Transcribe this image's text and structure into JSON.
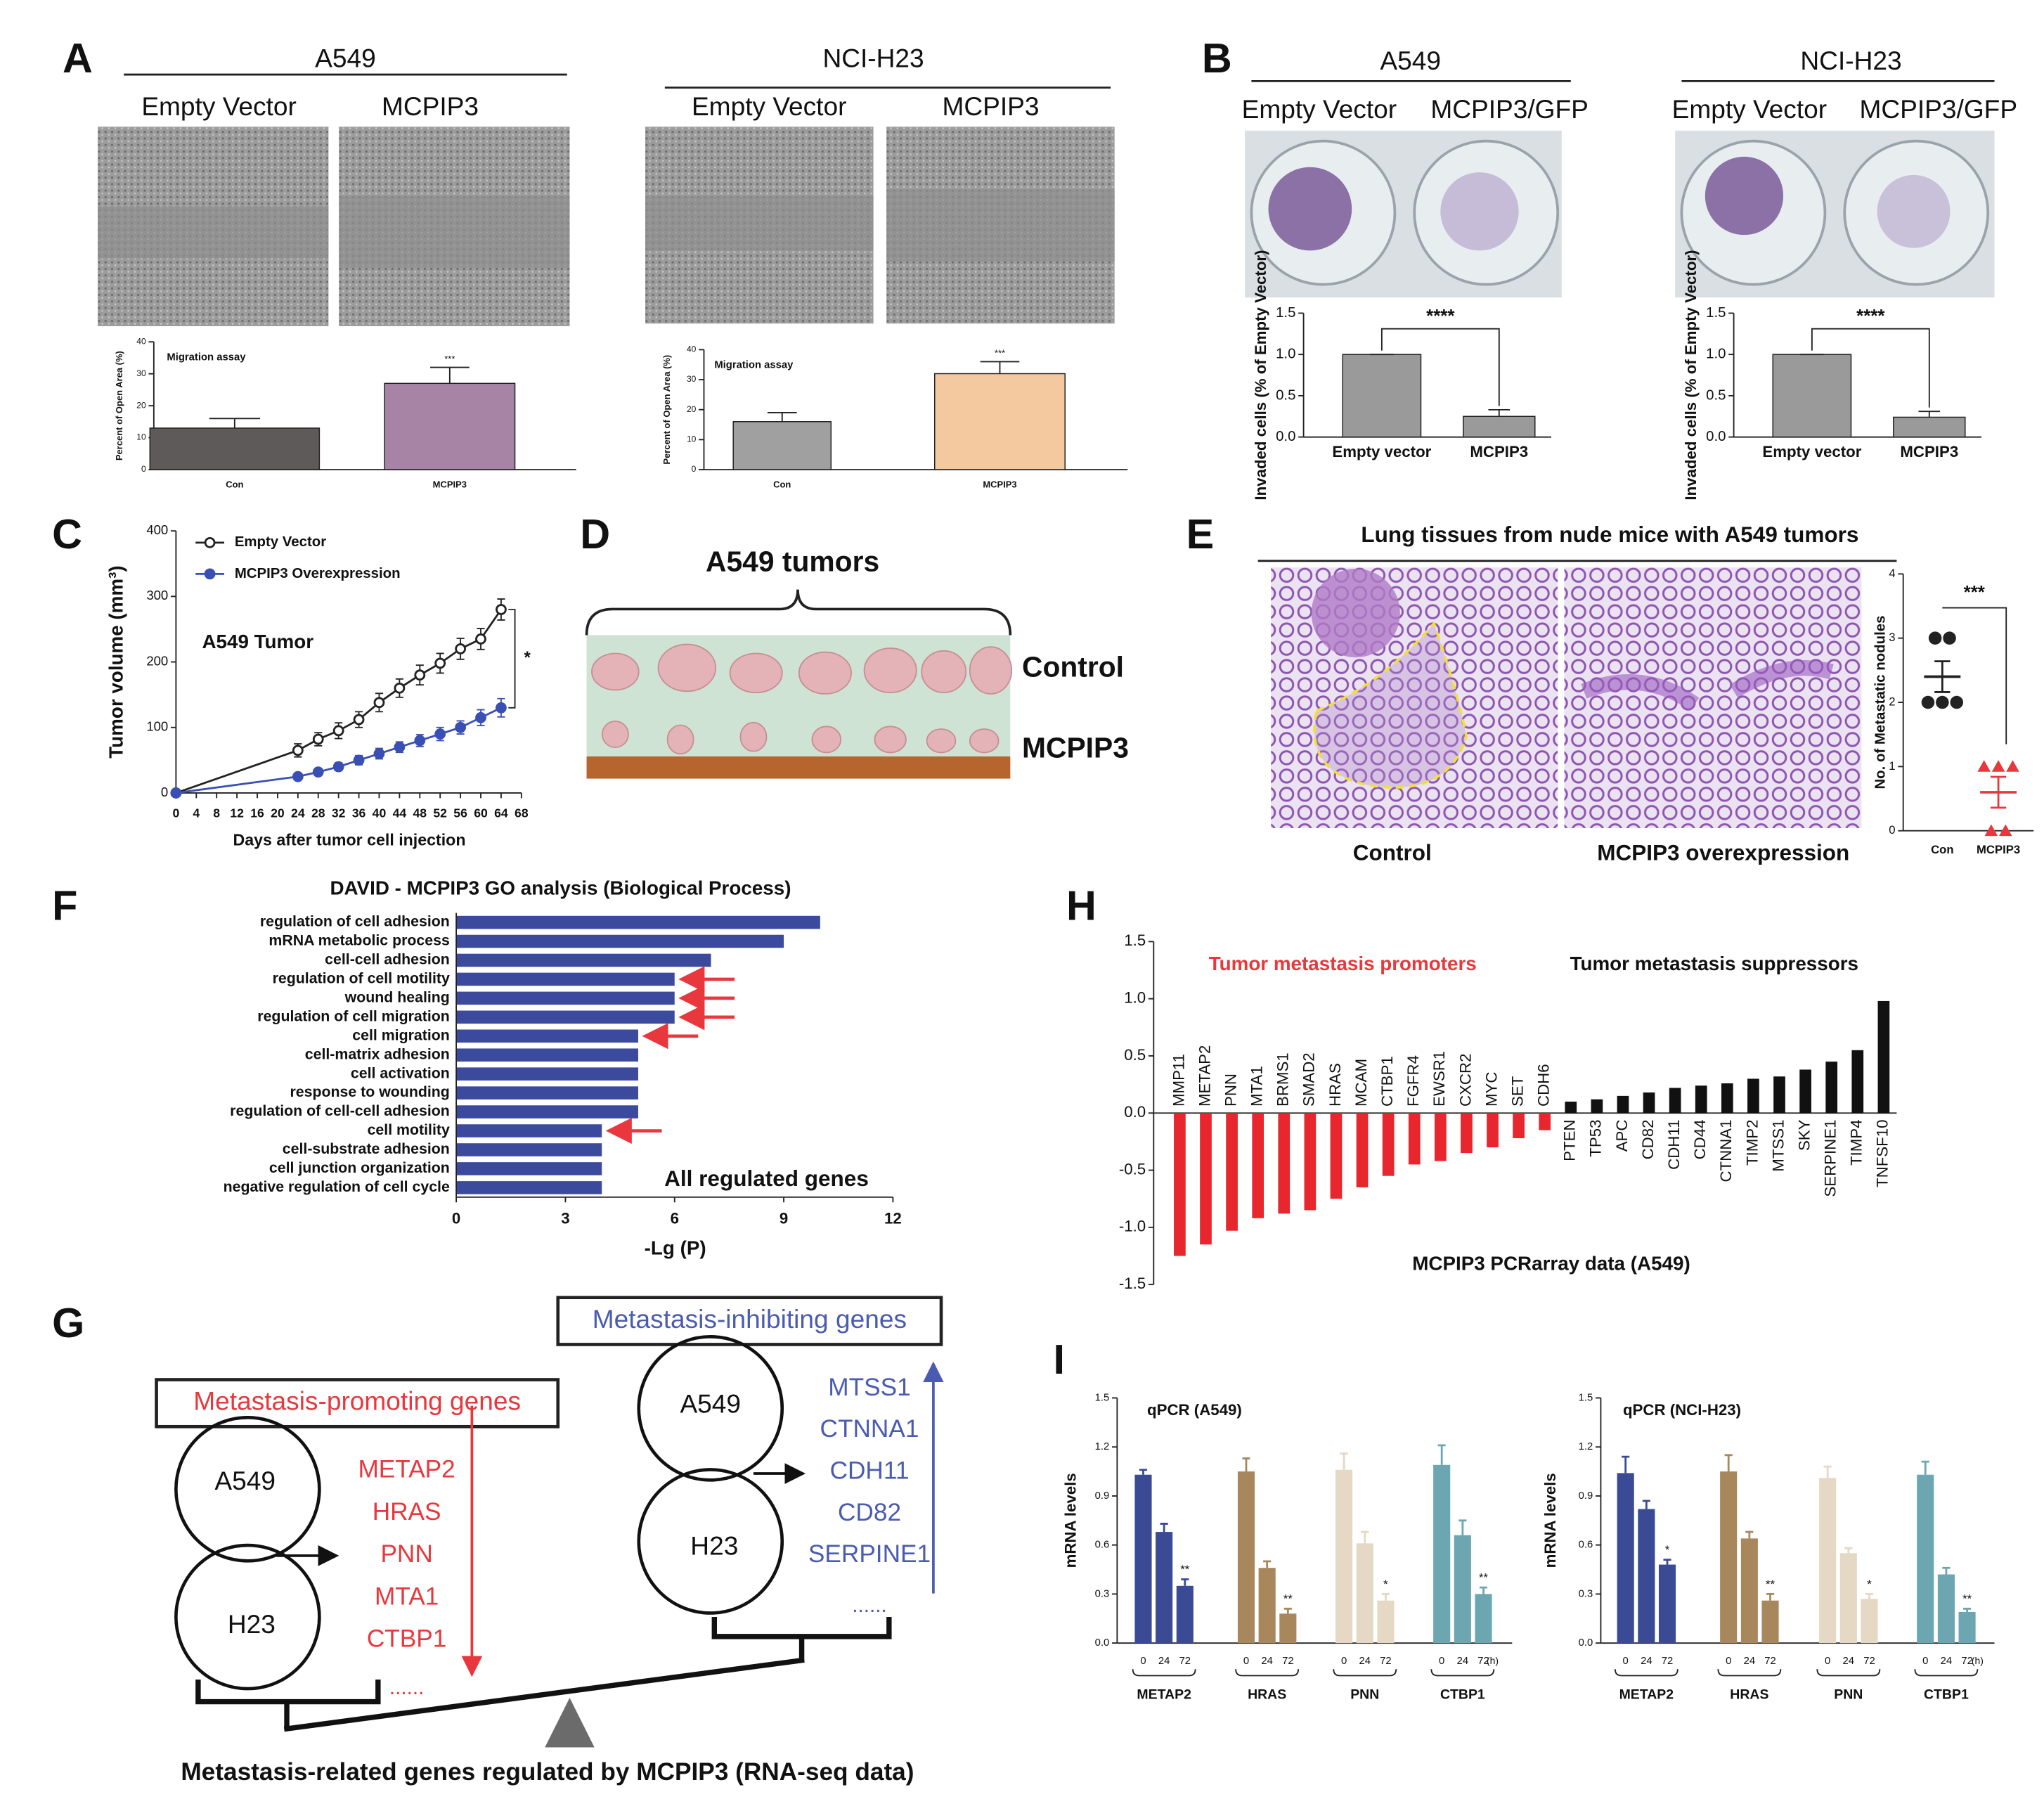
{
  "figure": {
    "panel_labels": [
      "A",
      "B",
      "C",
      "D",
      "E",
      "F",
      "G",
      "H",
      "I"
    ],
    "migration_photos": [
      {
        "title": "A549",
        "conditions": [
          "Empty Vector",
          "MCPIP3"
        ]
      },
      {
        "title": "NCI-H23",
        "conditions": [
          "Empty Vector",
          "MCPIP3"
        ]
      }
    ],
    "invasion_photos": [
      {
        "title": "A549",
        "conditions": [
          "Empty Vector",
          "MCPIP3/GFP"
        ]
      },
      {
        "title": "NCI-H23",
        "conditions": [
          "Empty Vector",
          "MCPIP3/GFP"
        ]
      }
    ],
    "tumors": {
      "title": "A549 tumors",
      "rows": [
        "Control",
        "MCPIP3"
      ]
    },
    "lung": {
      "title": "Lung tissues from nude mice with A549 tumors",
      "conditions": [
        "Control",
        "MCPIP3 overexpression"
      ]
    },
    "diagram": {
      "circles": [
        "A549",
        "H23"
      ],
      "promoting": {
        "title": "Metastasis-promoting genes",
        "genes": [
          "METAP2",
          "HRAS",
          "PNN",
          "MTA1",
          "CTBP1"
        ],
        "more": "......"
      },
      "inhibiting": {
        "title": "Metastasis-inhibiting genes",
        "genes": [
          "MTSS1",
          "CTNNA1",
          "CDH11",
          "CD82",
          "SERPINE1"
        ],
        "more": "......"
      },
      "caption": "Metastasis-related genes regulated by MCPIP3 (RNA-seq data)"
    }
  },
  "chart_data": [
    {
      "type": "bar",
      "title": "Migration assay",
      "ylabel": "Percent of Open Area (%)",
      "categories": [
        "Con",
        "MCPIP3"
      ],
      "values": [
        13,
        27
      ],
      "errors": [
        3,
        5
      ],
      "colors": [
        "#5f5a5a",
        "#a784a6"
      ],
      "ylim": [
        0,
        40
      ],
      "yticks": [
        0,
        10,
        20,
        30,
        40
      ],
      "significance": "***"
    },
    {
      "type": "bar",
      "title": "Migration assay",
      "ylabel": "Percent of Open Area (%)",
      "categories": [
        "Con",
        "MCPIP3"
      ],
      "values": [
        16,
        32
      ],
      "errors": [
        3,
        4
      ],
      "colors": [
        "#a0a0a0",
        "#f5c9a0"
      ],
      "ylim": [
        0,
        40
      ],
      "yticks": [
        0,
        10,
        20,
        30,
        40
      ],
      "significance": "***"
    },
    {
      "type": "bar",
      "ylabel": "Invaded cells (% of Empty Vector)",
      "categories": [
        "Empty vector",
        "MCPIP3"
      ],
      "values": [
        1,
        0.25
      ],
      "errors": [
        0,
        0.08
      ],
      "colors": [
        "#9a9a9a",
        "#9a9a9a"
      ],
      "ylim": [
        0,
        1.5
      ],
      "yticks": [
        {
          "value": 0,
          "label": "0.0"
        },
        0.5,
        {
          "value": 1,
          "label": "1.0"
        },
        1.5
      ],
      "significance": "****",
      "bracket": true
    },
    {
      "type": "bar",
      "ylabel": "Invaded cells (% of Empty Vector)",
      "categories": [
        "Empty vector",
        "MCPIP3"
      ],
      "values": [
        1,
        0.24
      ],
      "errors": [
        0,
        0.07
      ],
      "colors": [
        "#9a9a9a",
        "#9a9a9a"
      ],
      "ylim": [
        0,
        1.5
      ],
      "yticks": [
        {
          "value": 0,
          "label": "0.0"
        },
        0.5,
        {
          "value": 1,
          "label": "1.0"
        },
        1.5
      ],
      "significance": "****",
      "bracket": true
    },
    {
      "type": "line",
      "ylabel": "Tumor volume (mm³)",
      "xlabel": "Days after tumor cell injection",
      "annotation": "A549 Tumor",
      "significance": "*",
      "x": [
        0,
        24,
        28,
        32,
        36,
        40,
        44,
        48,
        52,
        56,
        60,
        64
      ],
      "series": [
        {
          "name": "Empty Vector",
          "color": "#222222",
          "marker": "open",
          "values": [
            0,
            65,
            82,
            95,
            112,
            138,
            160,
            180,
            198,
            220,
            235,
            280
          ],
          "errors": [
            0,
            10,
            10,
            12,
            12,
            14,
            14,
            15,
            15,
            16,
            16,
            16
          ]
        },
        {
          "name": "MCPIP3 Overexpression",
          "color": "#3a4fb3",
          "marker": "filled",
          "values": [
            0,
            25,
            32,
            40,
            50,
            60,
            70,
            80,
            90,
            100,
            115,
            130
          ],
          "errors": [
            0,
            5,
            5,
            6,
            7,
            8,
            8,
            9,
            10,
            10,
            12,
            14
          ]
        }
      ],
      "xlim": [
        0,
        68
      ],
      "xticks": [
        0,
        4,
        8,
        12,
        16,
        20,
        24,
        28,
        32,
        36,
        40,
        44,
        48,
        52,
        56,
        60,
        64,
        68
      ],
      "ylim": [
        0,
        400
      ],
      "yticks": [
        0,
        100,
        200,
        300,
        400
      ]
    },
    {
      "type": "dot",
      "ylabel": "No. of Metastatic nodules",
      "categories": [
        "Con",
        "MCPIP3"
      ],
      "values": [
        [
          3,
          3,
          2,
          2,
          2
        ],
        [
          1,
          1,
          1,
          0,
          0
        ]
      ],
      "means": [
        2.4,
        0.6
      ],
      "sems": [
        0.24,
        0.24
      ],
      "colors": [
        "#222222",
        "#e8383d"
      ],
      "markers": [
        "circle",
        "triangle"
      ],
      "ylim": [
        0,
        4
      ],
      "yticks": [
        0,
        1,
        2,
        3,
        4
      ],
      "significance": "***"
    },
    {
      "type": "hbar",
      "title": "DAVID - MCPIP3 GO analysis (Biological Process)",
      "xlabel": "-Lg (P)",
      "annotation": "All regulated genes",
      "categories": [
        "regulation of cell adhesion",
        "mRNA metabolic process",
        "cell-cell adhesion",
        "regulation of cell motility",
        "wound healing",
        "regulation of cell migration",
        "cell migration",
        "cell-matrix adhesion",
        "cell activation",
        "response to wounding",
        "regulation of cell-cell adhesion",
        "cell motility",
        "cell-substrate adhesion",
        "cell junction organization",
        "negative regulation of cell cycle"
      ],
      "values": [
        10,
        9,
        7,
        6,
        6,
        6,
        5,
        5,
        5,
        5,
        5,
        4,
        4,
        4,
        4
      ],
      "highlight": [
        false,
        false,
        false,
        true,
        true,
        true,
        true,
        false,
        false,
        false,
        false,
        true,
        false,
        false,
        false
      ],
      "color": "#3b4a9c",
      "highlight_color": "#e8383d",
      "xlim": [
        0,
        12
      ],
      "xticks": [
        0,
        3,
        6,
        9,
        12
      ]
    },
    {
      "type": "bar",
      "xlabel": "MCPIP3 PCRarray data (A549)",
      "annotations": [
        "Tumor metastasis promoters",
        "Tumor metastasis suppressors"
      ],
      "annotation_colors": [
        "#e8383d",
        "#111111"
      ],
      "categories": [
        "MMP11",
        "METAP2",
        "PNN",
        "MTA1",
        "BRMS1",
        "SMAD2",
        "HRAS",
        "MCAM",
        "CTBP1",
        "FGFR4",
        "EWSR1",
        "CXCR2",
        "MYC",
        "SET",
        "CDH6",
        "PTEN",
        "TP53",
        "APC",
        "CD82",
        "CDH11",
        "CD44",
        "CTNNA1",
        "TIMP2",
        "MTSS1",
        "SKY",
        "SERPINE1",
        "TIMP4",
        "TNFSF10"
      ],
      "values": [
        -1.25,
        -1.15,
        -1.03,
        -0.92,
        -0.88,
        -0.85,
        -0.75,
        -0.65,
        -0.55,
        -0.45,
        -0.42,
        -0.35,
        -0.3,
        -0.22,
        -0.15,
        0.1,
        0.12,
        0.15,
        0.18,
        0.22,
        0.24,
        0.26,
        0.3,
        0.32,
        0.38,
        0.45,
        0.55,
        0.98
      ],
      "colors": [
        "#e8262d",
        "#e8262d",
        "#e8262d",
        "#e8262d",
        "#e8262d",
        "#e8262d",
        "#e8262d",
        "#e8262d",
        "#e8262d",
        "#e8262d",
        "#e8262d",
        "#e8262d",
        "#e8262d",
        "#e8262d",
        "#e8262d",
        "#111111",
        "#111111",
        "#111111",
        "#111111",
        "#111111",
        "#111111",
        "#111111",
        "#111111",
        "#111111",
        "#111111",
        "#111111",
        "#111111",
        "#111111"
      ],
      "ylim": [
        -1.5,
        1.5
      ],
      "yticks": [
        -1.5,
        {
          "value": -1,
          "label": "-1.0"
        },
        -0.5,
        {
          "value": 0,
          "label": "0.0"
        },
        0.5,
        {
          "value": 1,
          "label": "1.0"
        },
        1.5
      ]
    },
    {
      "type": "grouped",
      "title": "qPCR (A549)",
      "ylabel": "mRNA levels",
      "times": [
        "0",
        "24",
        "72"
      ],
      "time_unit": "(h)",
      "groups": [
        {
          "name": "METAP2",
          "color": "#3a4a94",
          "values": [
            1.03,
            0.68,
            0.35
          ],
          "errors": [
            0.03,
            0.05,
            0.04
          ],
          "significance": "**"
        },
        {
          "name": "HRAS",
          "color": "#a8875d",
          "values": [
            1.05,
            0.46,
            0.18
          ],
          "errors": [
            0.08,
            0.04,
            0.03
          ],
          "significance": "**"
        },
        {
          "name": "PNN",
          "color": "#e5d8c4",
          "values": [
            1.06,
            0.61,
            0.26
          ],
          "errors": [
            0.1,
            0.07,
            0.04
          ],
          "significance": "*"
        },
        {
          "name": "CTBP1",
          "color": "#6ba6b1",
          "values": [
            1.09,
            0.66,
            0.3
          ],
          "errors": [
            0.12,
            0.09,
            0.04
          ],
          "significance": "**"
        }
      ],
      "ylim": [
        0,
        1.5
      ],
      "yticks": [
        {
          "value": 0,
          "label": "0.0"
        },
        0.3,
        0.6,
        0.9,
        1.2,
        1.5
      ]
    },
    {
      "type": "grouped",
      "title": "qPCR (NCI-H23)",
      "ylabel": "mRNA levels",
      "times": [
        "0",
        "24",
        "72"
      ],
      "time_unit": "(h)",
      "groups": [
        {
          "name": "METAP2",
          "color": "#3a4a94",
          "values": [
            1.04,
            0.82,
            0.48
          ],
          "errors": [
            0.1,
            0.05,
            0.03
          ],
          "significance": "*"
        },
        {
          "name": "HRAS",
          "color": "#a8875d",
          "values": [
            1.05,
            0.64,
            0.26
          ],
          "errors": [
            0.1,
            0.04,
            0.04
          ],
          "significance": "**"
        },
        {
          "name": "PNN",
          "color": "#e5d8c4",
          "values": [
            1.01,
            0.55,
            0.27
          ],
          "errors": [
            0.07,
            0.03,
            0.03
          ],
          "significance": "*"
        },
        {
          "name": "CTBP1",
          "color": "#6ba6b1",
          "values": [
            1.03,
            0.42,
            0.19
          ],
          "errors": [
            0.08,
            0.04,
            0.02
          ],
          "significance": "**"
        }
      ],
      "ylim": [
        0,
        1.5
      ],
      "yticks": [
        {
          "value": 0,
          "label": "0.0"
        },
        0.3,
        0.6,
        0.9,
        1.2,
        1.5
      ]
    }
  ]
}
